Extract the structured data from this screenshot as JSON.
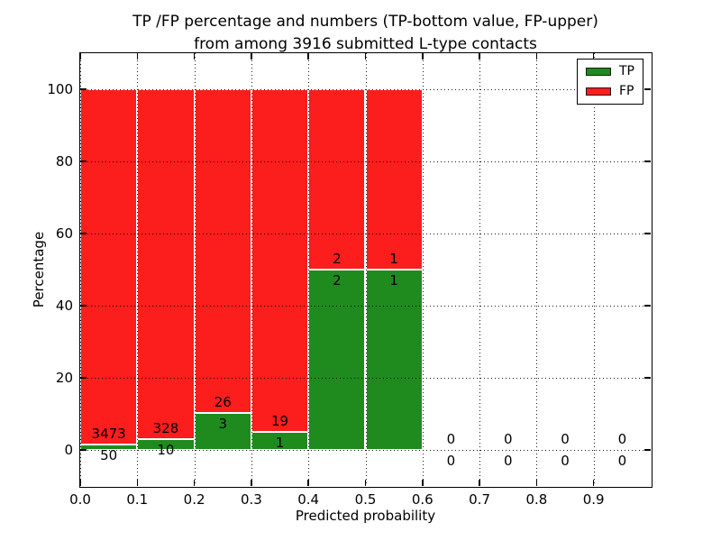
{
  "chart_data": {
    "type": "bar",
    "stacked": true,
    "title_line1": "TP /FP percentage and numbers (TP-bottom value, FP-upper)",
    "title_line2": "from among 3916 submitted L-type contacts",
    "xlabel": "Predicted probability",
    "ylabel": "Percentage",
    "xlim": [
      0.0,
      1.0
    ],
    "ylim": [
      -10,
      110
    ],
    "bin_width": 0.1,
    "grid": "dotted",
    "legend_position": "upper right",
    "xticks": [
      {
        "value": 0.0,
        "label": "0.0"
      },
      {
        "value": 0.1,
        "label": "0.1"
      },
      {
        "value": 0.2,
        "label": "0.2"
      },
      {
        "value": 0.3,
        "label": "0.3"
      },
      {
        "value": 0.4,
        "label": "0.4"
      },
      {
        "value": 0.5,
        "label": "0.5"
      },
      {
        "value": 0.6,
        "label": "0.6"
      },
      {
        "value": 0.7,
        "label": "0.7"
      },
      {
        "value": 0.8,
        "label": "0.8"
      },
      {
        "value": 0.9,
        "label": "0.9"
      }
    ],
    "yticks": [
      {
        "value": 0,
        "label": "0"
      },
      {
        "value": 20,
        "label": "20"
      },
      {
        "value": 40,
        "label": "40"
      },
      {
        "value": 60,
        "label": "60"
      },
      {
        "value": 80,
        "label": "80"
      },
      {
        "value": 100,
        "label": "100"
      }
    ],
    "bins": [
      {
        "range": [
          0.0,
          0.1
        ],
        "tp": 50,
        "fp": 3473
      },
      {
        "range": [
          0.1,
          0.2
        ],
        "tp": 10,
        "fp": 328
      },
      {
        "range": [
          0.2,
          0.3
        ],
        "tp": 3,
        "fp": 26
      },
      {
        "range": [
          0.3,
          0.4
        ],
        "tp": 1,
        "fp": 19
      },
      {
        "range": [
          0.4,
          0.5
        ],
        "tp": 2,
        "fp": 2
      },
      {
        "range": [
          0.5,
          0.6
        ],
        "tp": 1,
        "fp": 1
      },
      {
        "range": [
          0.6,
          0.7
        ],
        "tp": 0,
        "fp": 0
      },
      {
        "range": [
          0.7,
          0.8
        ],
        "tp": 0,
        "fp": 0
      },
      {
        "range": [
          0.8,
          0.9
        ],
        "tp": 0,
        "fp": 0
      },
      {
        "range": [
          0.9,
          1.0
        ],
        "tp": 0,
        "fp": 0
      }
    ],
    "legend": {
      "entries": [
        {
          "key": "tp",
          "label": "TP",
          "color": "#1f8b1f"
        },
        {
          "key": "fp",
          "label": "FP",
          "color": "#fc1d1d"
        }
      ]
    },
    "colors": {
      "tp": "#1f8b1f",
      "fp": "#fc1d1d",
      "bar_edge": "#ffffff",
      "grid": "#000000",
      "background": "#ffffff"
    }
  }
}
